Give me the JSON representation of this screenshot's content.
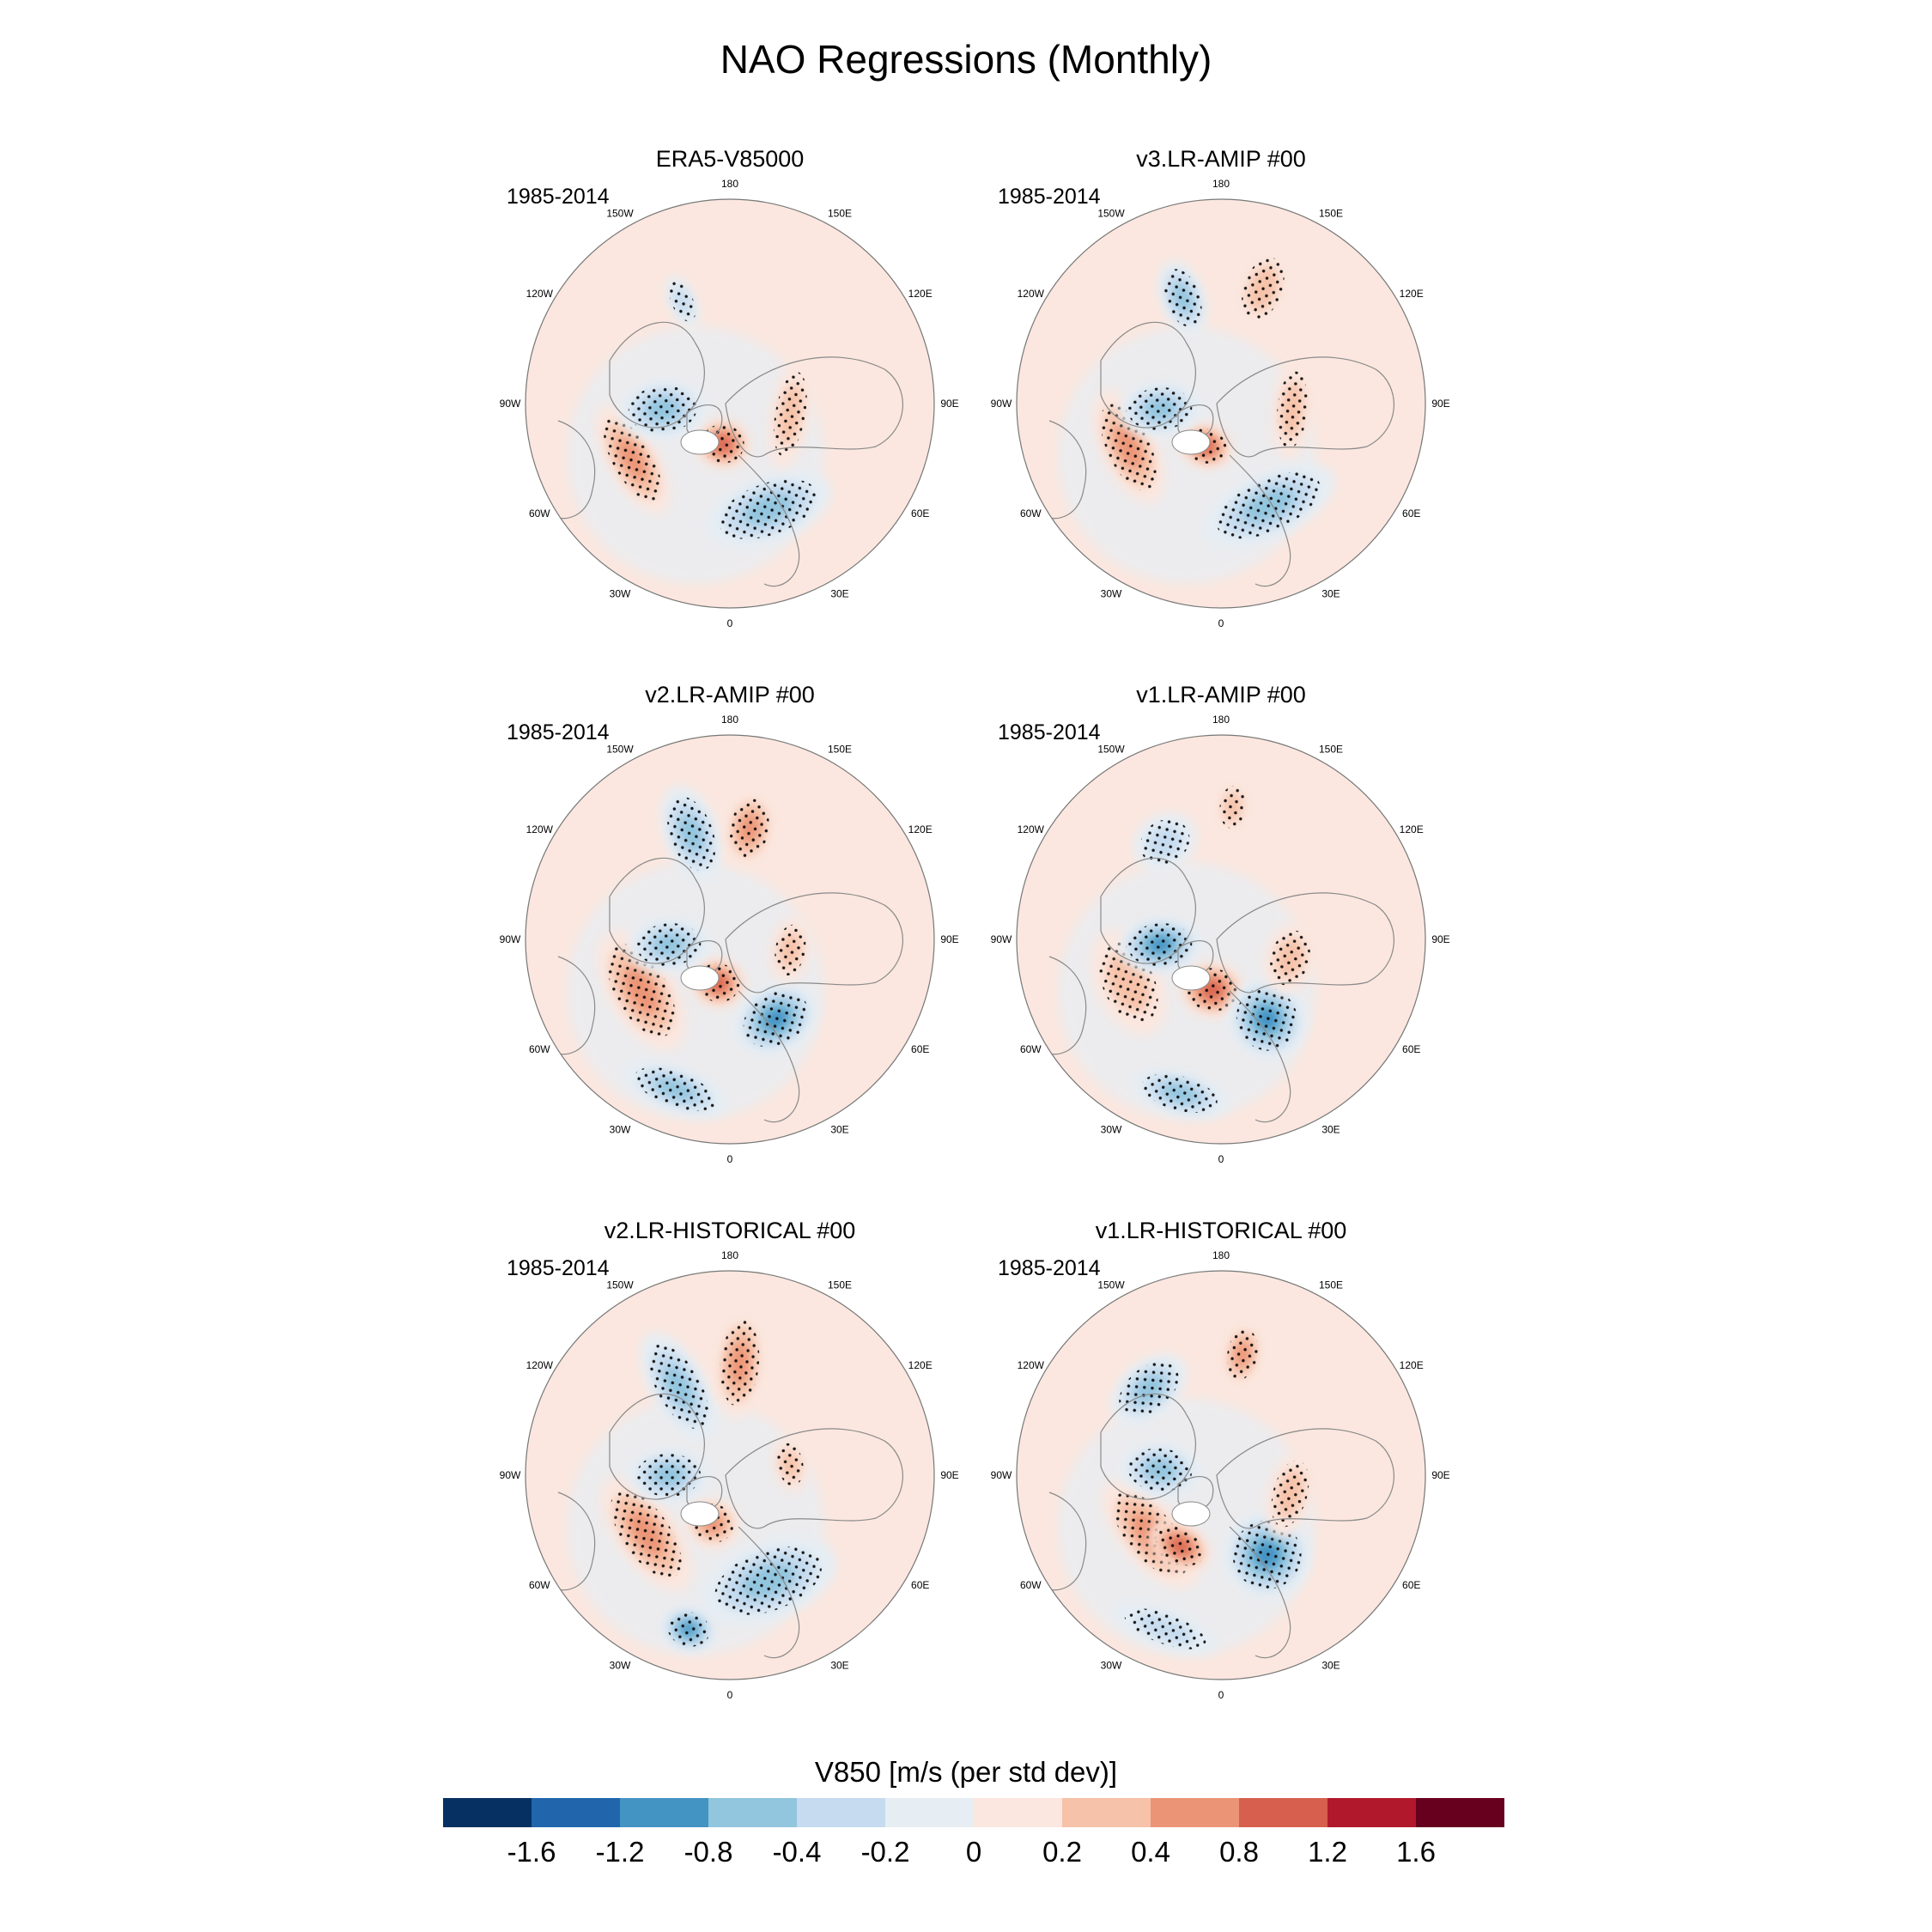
{
  "figure": {
    "title": "NAO Regressions (Monthly)",
    "longitude_labels": [
      "180",
      "150E",
      "120E",
      "90E",
      "60E",
      "30E",
      "0",
      "30W",
      "60W",
      "90W",
      "120W",
      "150W"
    ]
  },
  "panels": [
    {
      "title": "ERA5-V85000",
      "period": "1985-2014",
      "blobs": [
        {
          "lon": -60,
          "r": 0.55,
          "rx": 0.22,
          "ry": 0.09,
          "rot": 0,
          "level": 0.8
        },
        {
          "lon": -10,
          "r": 0.2,
          "rx": 0.1,
          "ry": 0.09,
          "rot": 0,
          "level": 1.2
        },
        {
          "lon": -85,
          "r": 0.33,
          "rx": 0.11,
          "ry": 0.16,
          "rot": 0,
          "level": -1.0
        },
        {
          "lon": 20,
          "r": 0.55,
          "rx": 0.24,
          "ry": 0.12,
          "rot": 0,
          "level": -0.8
        },
        {
          "lon": 80,
          "r": 0.3,
          "rx": 0.2,
          "ry": 0.07,
          "rot": 0,
          "level": 0.6
        },
        {
          "lon": -155,
          "r": 0.55,
          "rx": 0.05,
          "ry": 0.1,
          "rot": 0,
          "level": -0.4
        }
      ]
    },
    {
      "title": "v3.LR-AMIP  #00",
      "period": "1985-2014",
      "blobs": [
        {
          "lon": -65,
          "r": 0.5,
          "rx": 0.22,
          "ry": 0.1,
          "rot": 0,
          "level": 0.8
        },
        {
          "lon": -20,
          "r": 0.22,
          "rx": 0.1,
          "ry": 0.08,
          "rot": 0,
          "level": 1.2
        },
        {
          "lon": -85,
          "r": 0.3,
          "rx": 0.1,
          "ry": 0.15,
          "rot": 0,
          "level": -1.0
        },
        {
          "lon": 25,
          "r": 0.55,
          "rx": 0.26,
          "ry": 0.12,
          "rot": 0,
          "level": -0.8
        },
        {
          "lon": 85,
          "r": 0.35,
          "rx": 0.18,
          "ry": 0.07,
          "rot": 0,
          "level": 0.6
        },
        {
          "lon": -160,
          "r": 0.55,
          "rx": 0.08,
          "ry": 0.14,
          "rot": 0,
          "level": -0.8
        },
        {
          "lon": 160,
          "r": 0.6,
          "rx": 0.09,
          "ry": 0.15,
          "rot": 0,
          "level": 0.6
        }
      ]
    },
    {
      "title": "v2.LR-AMIP  #00",
      "period": "1985-2014",
      "blobs": [
        {
          "lon": -60,
          "r": 0.5,
          "rx": 0.24,
          "ry": 0.12,
          "rot": 0,
          "level": 0.8
        },
        {
          "lon": -15,
          "r": 0.22,
          "rx": 0.1,
          "ry": 0.09,
          "rot": 0,
          "level": 1.2
        },
        {
          "lon": -85,
          "r": 0.3,
          "rx": 0.1,
          "ry": 0.15,
          "rot": 0,
          "level": -1.0
        },
        {
          "lon": 30,
          "r": 0.45,
          "rx": 0.16,
          "ry": 0.12,
          "rot": 0,
          "level": -1.2
        },
        {
          "lon": -20,
          "r": 0.78,
          "rx": 0.2,
          "ry": 0.08,
          "rot": 0,
          "level": -0.8
        },
        {
          "lon": 80,
          "r": 0.3,
          "rx": 0.12,
          "ry": 0.07,
          "rot": 0,
          "level": 0.6
        },
        {
          "lon": -160,
          "r": 0.55,
          "rx": 0.1,
          "ry": 0.18,
          "rot": 0,
          "level": -0.8
        },
        {
          "lon": 170,
          "r": 0.55,
          "rx": 0.09,
          "ry": 0.14,
          "rot": 0,
          "level": 0.8
        }
      ]
    },
    {
      "title": "v1.LR-AMIP  #00",
      "period": "1985-2014",
      "blobs": [
        {
          "lon": -65,
          "r": 0.5,
          "rx": 0.2,
          "ry": 0.12,
          "rot": 0,
          "level": 0.6
        },
        {
          "lon": -10,
          "r": 0.25,
          "rx": 0.12,
          "ry": 0.1,
          "rot": 0,
          "level": 1.4
        },
        {
          "lon": -85,
          "r": 0.3,
          "rx": 0.1,
          "ry": 0.15,
          "rot": 0,
          "level": -1.2
        },
        {
          "lon": 30,
          "r": 0.45,
          "rx": 0.14,
          "ry": 0.15,
          "rot": 0,
          "level": -1.2
        },
        {
          "lon": -15,
          "r": 0.78,
          "rx": 0.18,
          "ry": 0.08,
          "rot": 0,
          "level": -0.8
        },
        {
          "lon": 75,
          "r": 0.35,
          "rx": 0.13,
          "ry": 0.09,
          "rot": 0,
          "level": 0.6
        },
        {
          "lon": -150,
          "r": 0.55,
          "rx": 0.12,
          "ry": 0.1,
          "rot": 0,
          "level": -0.6
        },
        {
          "lon": 175,
          "r": 0.65,
          "rx": 0.06,
          "ry": 0.1,
          "rot": 0,
          "level": 0.6
        }
      ]
    },
    {
      "title": "v2.LR-HISTORICAL  #00",
      "period": "1985-2014",
      "blobs": [
        {
          "lon": -55,
          "r": 0.5,
          "rx": 0.24,
          "ry": 0.11,
          "rot": 0,
          "level": 0.8
        },
        {
          "lon": -20,
          "r": 0.25,
          "rx": 0.1,
          "ry": 0.09,
          "rot": 0,
          "level": 1.0
        },
        {
          "lon": -90,
          "r": 0.3,
          "rx": 0.1,
          "ry": 0.15,
          "rot": 0,
          "level": -1.0
        },
        {
          "lon": 20,
          "r": 0.55,
          "rx": 0.26,
          "ry": 0.14,
          "rot": 0,
          "level": -1.0
        },
        {
          "lon": -15,
          "r": 0.78,
          "rx": 0.1,
          "ry": 0.08,
          "rot": 0,
          "level": -1.2
        },
        {
          "lon": -150,
          "r": 0.5,
          "rx": 0.1,
          "ry": 0.22,
          "rot": 0,
          "level": -1.0
        },
        {
          "lon": 175,
          "r": 0.55,
          "rx": 0.09,
          "ry": 0.2,
          "rot": 0,
          "level": 0.8
        },
        {
          "lon": 100,
          "r": 0.3,
          "rx": 0.1,
          "ry": 0.06,
          "rot": 0,
          "level": 0.4
        }
      ]
    },
    {
      "title": "v1.LR-HISTORICAL  #00",
      "period": "1985-2014",
      "blobs": [
        {
          "lon": -50,
          "r": 0.45,
          "rx": 0.24,
          "ry": 0.11,
          "rot": 0,
          "level": 1.0
        },
        {
          "lon": -30,
          "r": 0.4,
          "rx": 0.12,
          "ry": 0.08,
          "rot": 0,
          "level": 1.4
        },
        {
          "lon": -95,
          "r": 0.3,
          "rx": 0.1,
          "ry": 0.15,
          "rot": 0,
          "level": -1.0
        },
        {
          "lon": 30,
          "r": 0.45,
          "rx": 0.16,
          "ry": 0.16,
          "rot": 0,
          "level": -1.4
        },
        {
          "lon": -20,
          "r": 0.8,
          "rx": 0.2,
          "ry": 0.07,
          "rot": 0,
          "level": -0.6
        },
        {
          "lon": -140,
          "r": 0.55,
          "rx": 0.16,
          "ry": 0.1,
          "rot": 0,
          "level": -0.8
        },
        {
          "lon": 170,
          "r": 0.6,
          "rx": 0.07,
          "ry": 0.12,
          "rot": 0,
          "level": 0.8
        },
        {
          "lon": 75,
          "r": 0.35,
          "rx": 0.16,
          "ry": 0.08,
          "rot": 0,
          "level": 0.6
        }
      ]
    }
  ],
  "colorbar": {
    "title": "V850 [m/s (per std dev)]",
    "tick_labels": [
      "-1.6",
      "-1.2",
      "-0.8",
      "-0.4",
      "-0.2",
      "0",
      "0.2",
      "0.4",
      "0.8",
      "1.2",
      "1.6"
    ],
    "colors": [
      "#053061",
      "#2166ac",
      "#4393c3",
      "#92c5de",
      "#c6dbef",
      "#e6eef4",
      "#fbe7df",
      "#f6c2a9",
      "#ec9476",
      "#d6604d",
      "#b2182b",
      "#67001f"
    ]
  }
}
